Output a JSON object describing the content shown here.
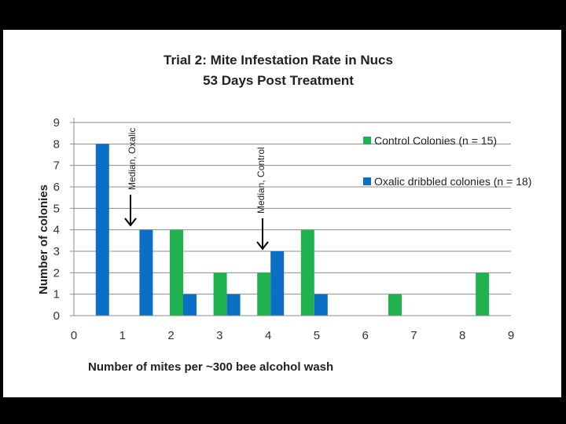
{
  "chart_data": {
    "type": "bar",
    "title": [
      "Trial 2: Mite Infestation Rate in Nucs",
      "53 Days Post Treatment"
    ],
    "xlabel": "Number of mites per ~300 bee alcohol wash",
    "ylabel": "Number of colonies",
    "x": [
      0,
      1,
      2,
      3,
      4,
      5,
      6,
      7,
      8,
      9
    ],
    "xticks": [
      "0",
      "1",
      "2",
      "3",
      "4",
      "5",
      "6",
      "7",
      "8",
      "9"
    ],
    "ylim": [
      0,
      9
    ],
    "yticks": [
      "0",
      "1",
      "2",
      "3",
      "4",
      "5",
      "6",
      "7",
      "8",
      "9"
    ],
    "grid": true,
    "legend_position": "right",
    "series": [
      {
        "name": "Control Colonies (n = 15)",
        "color": "#1fb24f",
        "values": [
          0,
          0,
          4,
          2,
          2,
          4,
          0,
          1,
          0,
          2
        ]
      },
      {
        "name": "Oxalic dribbled colonies (n = 18)",
        "color": "#0b6fc6",
        "values": [
          8,
          4,
          1,
          1,
          3,
          1,
          0,
          0,
          0,
          0
        ]
      }
    ],
    "annotations": [
      {
        "text": "Median, Oxalic",
        "x": 1
      },
      {
        "text": "Median, Control",
        "x": 4
      }
    ]
  }
}
